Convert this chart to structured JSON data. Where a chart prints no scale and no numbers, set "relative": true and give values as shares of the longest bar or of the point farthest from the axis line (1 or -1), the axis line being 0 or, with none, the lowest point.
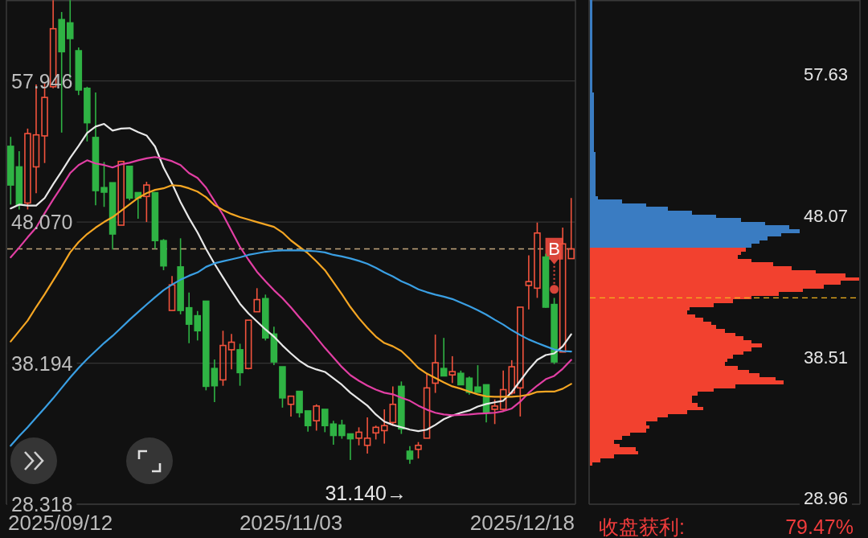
{
  "chart_data": [
    {
      "type": "candlestick",
      "categories": [
        null,
        null,
        null,
        null,
        null,
        null,
        null,
        null,
        null,
        null,
        null,
        null,
        null,
        null,
        null,
        null,
        null,
        null,
        null,
        null,
        null,
        null,
        null,
        null,
        null,
        null,
        null,
        null,
        null,
        null,
        null,
        null,
        null,
        null,
        null,
        null,
        null,
        null,
        null,
        null,
        null,
        null,
        null,
        null,
        null,
        null,
        null,
        null,
        null,
        null,
        null,
        null,
        null,
        null,
        null,
        null,
        null,
        null,
        null,
        null,
        null,
        null,
        null,
        null,
        null,
        null,
        null
      ],
      "ohlc": [
        [
          53.37,
          54.03,
          49.29,
          50.66
        ],
        [
          51.93,
          53.03,
          48.95,
          49.29
        ],
        [
          49.4,
          54.61,
          48.95,
          54.26
        ],
        [
          51.93,
          57.7,
          50.09,
          54.17
        ],
        [
          54.1,
          57.77,
          52.2,
          56.79
        ],
        [
          57.54,
          63.6,
          57.43,
          61.6
        ],
        [
          62.24,
          62.77,
          54.33,
          59.99
        ],
        [
          62.01,
          63.6,
          58.11,
          60.91
        ],
        [
          60.06,
          60.29,
          56.96,
          57.31
        ],
        [
          57.43,
          57.54,
          53.71,
          55.02
        ],
        [
          53.99,
          57.13,
          49.24,
          50.27
        ],
        [
          50.48,
          52.27,
          49.13,
          50.16
        ],
        [
          50.82,
          50.82,
          46.15,
          47.23
        ],
        [
          47.85,
          52.31,
          47.85,
          52.31
        ],
        [
          51.97,
          51.97,
          49.59,
          49.75
        ],
        [
          50.13,
          50.13,
          48.3,
          49.75
        ],
        [
          49.86,
          50.89,
          48.07,
          50.66
        ],
        [
          50.13,
          50.13,
          46.19,
          46.77
        ],
        [
          46.77,
          46.88,
          44.7,
          45.0
        ],
        [
          41.88,
          44.29,
          41.88,
          43.67
        ],
        [
          44.93,
          46.93,
          41.61,
          41.88
        ],
        [
          42.07,
          43.14,
          39.59,
          40.92
        ],
        [
          41.51,
          41.84,
          39.78,
          40.46
        ],
        [
          42.53,
          42.53,
          36.29,
          36.57
        ],
        [
          37.82,
          38.45,
          35.47,
          36.61
        ],
        [
          37.02,
          40.46,
          36.61,
          39.43
        ],
        [
          39.13,
          40.23,
          37.76,
          39.66
        ],
        [
          39.13,
          39.55,
          36.61,
          37.53
        ],
        [
          37.82,
          41.2,
          37.76,
          41.2
        ],
        [
          41.79,
          43.44,
          41.79,
          42.64
        ],
        [
          42.71,
          42.99,
          39.78,
          39.96
        ],
        [
          40.23,
          40.74,
          38.05,
          38.28
        ],
        [
          37.94,
          37.94,
          35.08,
          35.76
        ],
        [
          35.31,
          35.88,
          34.46,
          35.88
        ],
        [
          36.22,
          36.22,
          34.39,
          34.73
        ],
        [
          34.85,
          34.85,
          33.4,
          33.82
        ],
        [
          34.16,
          35.31,
          33.47,
          35.19
        ],
        [
          34.96,
          34.96,
          33.36,
          33.82
        ],
        [
          33.93,
          34.16,
          32.49,
          33.13
        ],
        [
          33.86,
          34.23,
          32.9,
          33.13
        ],
        [
          33.24,
          33.24,
          31.41,
          32.9
        ],
        [
          32.94,
          33.7,
          32.44,
          33.36
        ],
        [
          32.44,
          34.39,
          31.87,
          32.94
        ],
        [
          33.31,
          33.82,
          32.85,
          33.7
        ],
        [
          33.47,
          34.96,
          32.56,
          33.82
        ],
        [
          34.04,
          36.57,
          33.82,
          35.31
        ],
        [
          36.57,
          36.91,
          33.24,
          33.59
        ],
        [
          32.03,
          32.39,
          31.14,
          31.48
        ],
        [
          32.16,
          32.67,
          31.52,
          32.44
        ],
        [
          32.94,
          37.48,
          32.94,
          36.46
        ],
        [
          36.79,
          40.19,
          36.11,
          38.22
        ],
        [
          37.82,
          39.96,
          37.3,
          37.3
        ],
        [
          37.37,
          38.68,
          36.8,
          37.6
        ],
        [
          37.48,
          37.67,
          36.68,
          36.68
        ],
        [
          37.14,
          37.25,
          35.99,
          36.15
        ],
        [
          36.52,
          38.05,
          36.15,
          36.15
        ],
        [
          36.68,
          36.68,
          34.04,
          34.73
        ],
        [
          34.96,
          35.65,
          33.93,
          35.19
        ],
        [
          34.96,
          37.67,
          34.85,
          36.34
        ],
        [
          36.11,
          38.4,
          35.99,
          37.94
        ],
        [
          36.46,
          42.11,
          34.46,
          42.11
        ],
        [
          43.63,
          45.74,
          41.95,
          43.9
        ],
        [
          43.44,
          48.03,
          42.76,
          47.3
        ],
        [
          45.62,
          45.85,
          42.07,
          42.11
        ],
        [
          42.3,
          42.76,
          38.13,
          38.28
        ],
        [
          38.97,
          47.68,
          38.97,
          46.54
        ],
        [
          45.51,
          49.75,
          45.51,
          46.19
        ]
      ],
      "colors": [
        "#2fb344",
        "#2fb344",
        "#f2533d",
        "#f2533d",
        "#f2533d",
        "#f2533d",
        "#2fb344",
        "#2fb344",
        "#2fb344",
        "#2fb344",
        "#2fb344",
        "#2fb344",
        "#2fb344",
        "#f2533d",
        "#2fb344",
        "#2fb344",
        "#f2533d",
        "#2fb344",
        "#2fb344",
        "#f2533d",
        "#2fb344",
        "#2fb344",
        "#2fb344",
        "#2fb344",
        "#2fb344",
        "#f2533d",
        "#f2533d",
        "#2fb344",
        "#f2533d",
        "#f2533d",
        "#2fb344",
        "#2fb344",
        "#2fb344",
        "#f2533d",
        "#2fb344",
        "#2fb344",
        "#f2533d",
        "#2fb344",
        "#2fb344",
        "#2fb344",
        "#2fb344",
        "#f2533d",
        "#f2533d",
        "#f2533d",
        "#f2533d",
        "#f2533d",
        "#2fb344",
        "#2fb344",
        "#f2533d",
        "#f2533d",
        "#f2533d",
        "#2fb344",
        "#f2533d",
        "#2fb344",
        "#2fb344",
        "#2fb344",
        "#2fb344",
        "#f2533d",
        "#f2533d",
        "#f2533d",
        "#f2533d",
        "#f2533d",
        "#f2533d",
        "#2fb344",
        "#2fb344",
        "#f2533d",
        "#f2533d"
      ],
      "series": [
        {
          "type": "line",
          "color": "#e8e8e8",
          "values": [
            49.02,
            49.29,
            49.22,
            49.22,
            49.75,
            50.71,
            51.61,
            52.56,
            53.4,
            54.3,
            54.75,
            54.94,
            54.47,
            54.61,
            54.64,
            54.36,
            54.13,
            53.35,
            51.89,
            50.76,
            49.47,
            48.35,
            47.34,
            46.19,
            45.15,
            44.2,
            43.25,
            42.35,
            41.67,
            41.11,
            40.55,
            40.05,
            39.43,
            38.87,
            38.36,
            37.97,
            37.75,
            37.58,
            37.13,
            36.68,
            36.12,
            35.67,
            35.22,
            34.6,
            34.1,
            33.87,
            33.71,
            33.54,
            33.43,
            33.54,
            33.87,
            34.27,
            34.52,
            34.72,
            34.88,
            35.16,
            35.33,
            35.45,
            35.56,
            36.17,
            36.96,
            37.75,
            38.42,
            38.76,
            38.87,
            39.37,
            40.21
          ]
        },
        {
          "type": "line",
          "color": "#e23fa4",
          "values": [
            45.6,
            46.28,
            47.0,
            47.68,
            48.69,
            49.64,
            50.54,
            51.49,
            52.06,
            52.39,
            52.17,
            52.06,
            51.89,
            52.11,
            52.22,
            52.39,
            52.53,
            52.62,
            52.5,
            52.33,
            52.06,
            51.49,
            51.16,
            50.48,
            49.53,
            48.58,
            47.45,
            46.33,
            45.43,
            44.59,
            43.92,
            43.3,
            42.74,
            42.09,
            41.39,
            40.72,
            39.99,
            39.26,
            38.59,
            37.92,
            37.35,
            36.96,
            36.62,
            36.34,
            36.12,
            36.01,
            35.78,
            35.56,
            35.22,
            34.94,
            34.72,
            34.6,
            34.55,
            34.57,
            34.6,
            34.66,
            34.69,
            34.72,
            34.83,
            35.02,
            35.5,
            36.12,
            36.62,
            37.07,
            37.3,
            37.8,
            38.42
          ]
        },
        {
          "type": "line",
          "color": "#f5a623",
          "values": [
            39.71,
            40.44,
            41.17,
            42.12,
            43.02,
            43.97,
            44.93,
            45.94,
            46.67,
            47.23,
            47.68,
            48.07,
            48.41,
            48.86,
            49.31,
            49.75,
            50.09,
            50.32,
            50.43,
            50.65,
            50.6,
            50.43,
            50.2,
            49.81,
            49.25,
            48.91,
            48.63,
            48.41,
            48.24,
            48.07,
            47.9,
            47.73,
            47.34,
            46.78,
            46.33,
            45.88,
            45.32,
            44.7,
            43.86,
            43.02,
            42.12,
            41.34,
            40.66,
            40.05,
            39.6,
            39.37,
            39.04,
            38.48,
            37.86,
            37.46,
            37.16,
            36.85,
            36.57,
            36.4,
            36.2,
            36.01,
            35.87,
            35.84,
            35.84,
            35.84,
            35.89,
            35.98,
            36.18,
            36.2,
            36.2,
            36.4,
            36.74
          ]
        },
        {
          "type": "line",
          "color": "#3a9fe3",
          "values": [
            32.41,
            33.09,
            33.71,
            34.38,
            35.05,
            35.73,
            36.46,
            37.18,
            37.86,
            38.48,
            39.04,
            39.6,
            40.1,
            40.66,
            41.23,
            41.76,
            42.29,
            42.8,
            43.3,
            43.69,
            44.03,
            44.31,
            44.54,
            44.93,
            45.18,
            45.32,
            45.46,
            45.6,
            45.77,
            45.88,
            45.99,
            46.05,
            46.08,
            46.08,
            46.08,
            46.05,
            46.02,
            45.94,
            45.77,
            45.66,
            45.52,
            45.35,
            45.15,
            44.87,
            44.54,
            44.26,
            43.92,
            43.67,
            43.36,
            43.16,
            42.99,
            42.85,
            42.68,
            42.43,
            42.18,
            41.9,
            41.59,
            41.23,
            40.89,
            40.5,
            40.16,
            39.85,
            39.6,
            39.37,
            39.15,
            39.04,
            39.01
          ]
        },
        {
          "type": "scatter",
          "color": "#d9453a",
          "marker": "circle",
          "values": [
            null,
            null,
            null,
            null,
            null,
            null,
            null,
            null,
            null,
            null,
            null,
            null,
            null,
            null,
            null,
            null,
            null,
            null,
            null,
            null,
            null,
            null,
            null,
            null,
            null,
            null,
            null,
            null,
            null,
            null,
            null,
            null,
            null,
            null,
            null,
            null,
            null,
            null,
            null,
            null,
            null,
            null,
            null,
            null,
            null,
            null,
            null,
            null,
            null,
            null,
            null,
            null,
            null,
            null,
            null,
            null,
            null,
            null,
            null,
            null,
            null,
            null,
            null,
            null,
            43.36,
            null,
            null
          ],
          "value_labels": [
            null,
            null,
            null,
            null,
            null,
            null,
            null,
            null,
            null,
            null,
            null,
            null,
            null,
            null,
            null,
            null,
            null,
            null,
            null,
            null,
            null,
            null,
            null,
            null,
            null,
            null,
            null,
            null,
            null,
            null,
            null,
            null,
            null,
            null,
            null,
            null,
            null,
            null,
            null,
            null,
            null,
            null,
            null,
            null,
            null,
            null,
            null,
            null,
            null,
            null,
            null,
            null,
            null,
            null,
            null,
            null,
            null,
            null,
            null,
            null,
            null,
            null,
            null,
            null,
            "B",
            null,
            null
          ]
        }
      ],
      "ylim": [
        28.318,
        63.61
      ],
      "yticks": [
        57.946,
        {
          "value": 48.07,
          "label": "48.070"
        },
        38.194,
        28.318
      ],
      "grid": "y",
      "ref_lines": [
        {
          "axis": "y",
          "value": 46.19,
          "color": "#c2a67c",
          "line_style": "dashed"
        }
      ],
      "annotations": [
        "31.140→",
        "2025/09/12",
        "2025/11/03",
        "2025/12/18"
      ]
    },
    {
      "type": "bar",
      "orientation": "horizontal",
      "relative": true,
      "x": [
        31.3,
        31.55,
        31.8,
        32.05,
        32.3,
        32.55,
        32.8,
        33.05,
        33.3,
        33.55,
        33.8,
        34.05,
        34.3,
        34.55,
        34.8,
        35.05,
        35.3,
        35.55,
        35.8,
        36.05,
        36.3,
        36.55,
        36.8,
        37.05,
        37.3,
        37.55,
        37.8,
        38.05,
        38.3,
        38.55,
        38.8,
        39.05,
        39.3,
        39.55,
        39.8,
        40.05,
        40.3,
        40.55,
        40.8,
        41.05,
        41.3,
        41.55,
        41.8,
        42.05,
        42.3,
        42.55,
        42.8,
        43.05,
        43.3,
        43.55,
        43.8,
        44.05,
        44.3,
        44.55,
        44.8,
        45.05,
        45.3,
        45.55,
        45.8,
        46.05,
        46.3,
        46.55,
        46.8,
        47.05,
        47.3,
        47.55,
        47.8,
        48.05,
        48.3,
        48.55,
        48.8,
        49.05,
        49.3,
        49.55,
        49.8,
        50.05,
        50.3,
        50.55,
        50.8,
        51.05,
        51.3,
        51.55,
        51.8,
        52.05,
        52.3,
        52.55,
        52.8,
        53.05,
        53.3,
        53.55,
        53.8,
        54.05,
        54.3,
        54.55,
        54.8,
        55.05,
        55.3,
        55.55,
        55.8,
        56.05,
        56.3,
        56.55,
        56.8,
        57.05,
        57.3,
        57.55,
        57.8,
        58.05,
        58.3,
        58.55,
        58.8,
        59.05,
        59.3,
        59.55,
        59.8,
        60.05,
        60.3,
        60.55,
        60.8,
        61.05,
        61.3,
        61.55,
        61.8,
        62.05,
        62.3,
        62.55
      ],
      "values": [
        0.01,
        0.04,
        0.09,
        0.18,
        0.17,
        0.11,
        0.09,
        0.12,
        0.15,
        0.21,
        0.22,
        0.21,
        0.25,
        0.29,
        0.36,
        0.42,
        0.4,
        0.38,
        0.38,
        0.4,
        0.46,
        0.54,
        0.72,
        0.69,
        0.63,
        0.59,
        0.55,
        0.5,
        0.51,
        0.53,
        0.57,
        0.6,
        0.64,
        0.6,
        0.57,
        0.54,
        0.5,
        0.47,
        0.45,
        0.42,
        0.39,
        0.36,
        0.37,
        0.46,
        0.53,
        0.6,
        0.7,
        0.79,
        0.87,
        0.93,
        1,
        0.95,
        0.84,
        0.75,
        0.68,
        0.6,
        0.55,
        0.56,
        0.58,
        0.6,
        0.63,
        0.66,
        0.71,
        0.78,
        0.74,
        0.65,
        0.56,
        0.47,
        0.38,
        0.29,
        0.21,
        0.12,
        0.03,
        0.02,
        0.02,
        0.02,
        0.02,
        0.02,
        0.02,
        0.02,
        0.02,
        0.02,
        0.02,
        0.02,
        0.02,
        0.015,
        0.015,
        0.015,
        0.015,
        0.015,
        0.015,
        0.015,
        0.015,
        0.015,
        0.015,
        0.015,
        0.015,
        0.015,
        0.015,
        0.015,
        0.015,
        0.01,
        0.01,
        0.01,
        0.01,
        0.01,
        0.01,
        0.01,
        0.01,
        0.01,
        0.01,
        0.01,
        0.01,
        0.01,
        0.01,
        0.01,
        0.01,
        0.01,
        0.01,
        0.01,
        0.01,
        0.01,
        0.01,
        0.01,
        0.01,
        0.01
      ],
      "colors": [
        "#f2412f",
        "#f2412f",
        "#f2412f",
        "#f2412f",
        "#f2412f",
        "#f2412f",
        "#f2412f",
        "#f2412f",
        "#f2412f",
        "#f2412f",
        "#f2412f",
        "#f2412f",
        "#f2412f",
        "#f2412f",
        "#f2412f",
        "#f2412f",
        "#f2412f",
        "#f2412f",
        "#f2412f",
        "#f2412f",
        "#f2412f",
        "#f2412f",
        "#f2412f",
        "#f2412f",
        "#f2412f",
        "#f2412f",
        "#f2412f",
        "#f2412f",
        "#f2412f",
        "#f2412f",
        "#f2412f",
        "#f2412f",
        "#f2412f",
        "#f2412f",
        "#f2412f",
        "#f2412f",
        "#f2412f",
        "#f2412f",
        "#f2412f",
        "#f2412f",
        "#f2412f",
        "#f2412f",
        "#f2412f",
        "#f2412f",
        "#f2412f",
        "#f2412f",
        "#f2412f",
        "#f2412f",
        "#f2412f",
        "#f2412f",
        "#f2412f",
        "#f2412f",
        "#f2412f",
        "#f2412f",
        "#f2412f",
        "#f2412f",
        "#f2412f",
        "#f2412f",
        "#f2412f",
        "#3a7cc2",
        "#3a7cc2",
        "#3a7cc2",
        "#3a7cc2",
        "#3a7cc2",
        "#3a7cc2",
        "#3a7cc2",
        "#3a7cc2",
        "#3a7cc2",
        "#3a7cc2",
        "#3a7cc2",
        "#3a7cc2",
        "#3a7cc2",
        "#3a7cc2",
        "#3a7cc2",
        "#3a7cc2",
        "#3a7cc2",
        "#3a7cc2",
        "#3a7cc2",
        "#3a7cc2",
        "#3a7cc2",
        "#3a7cc2",
        "#3a7cc2",
        "#3a7cc2",
        "#3a7cc2",
        "#3a7cc2",
        "#3a7cc2",
        "#3a7cc2",
        "#3a7cc2",
        "#3a7cc2",
        "#3a7cc2",
        "#3a7cc2",
        "#3a7cc2",
        "#3a7cc2",
        "#3a7cc2",
        "#3a7cc2",
        "#3a7cc2",
        "#3a7cc2",
        "#3a7cc2",
        "#3a7cc2",
        "#3a7cc2",
        "#3a7cc2",
        "#3a7cc2",
        "#3a7cc2",
        "#3a7cc2",
        "#3a7cc2",
        "#3a7cc2",
        "#3a7cc2",
        "#3a7cc2",
        "#3a7cc2",
        "#3a7cc2",
        "#3a7cc2",
        "#3a7cc2",
        "#3a7cc2",
        "#3a7cc2",
        "#3a7cc2",
        "#3a7cc2",
        "#3a7cc2",
        "#3a7cc2",
        "#3a7cc2",
        "#3a7cc2",
        "#3a7cc2",
        "#3a7cc2",
        "#3a7cc2",
        "#3a7cc2",
        "#3a7cc2",
        "#3a7cc2"
      ],
      "ylim": [
        28.57,
        62.68
      ],
      "yticks": [
        57.63,
        48.07,
        38.51,
        28.96
      ],
      "ref_lines": [
        {
          "axis": "y",
          "value": 42.53,
          "color": "#f2b21f",
          "line_style": "dashed"
        }
      ],
      "annotations": [
        "收盘获利:",
        "79.47%"
      ]
    }
  ]
}
